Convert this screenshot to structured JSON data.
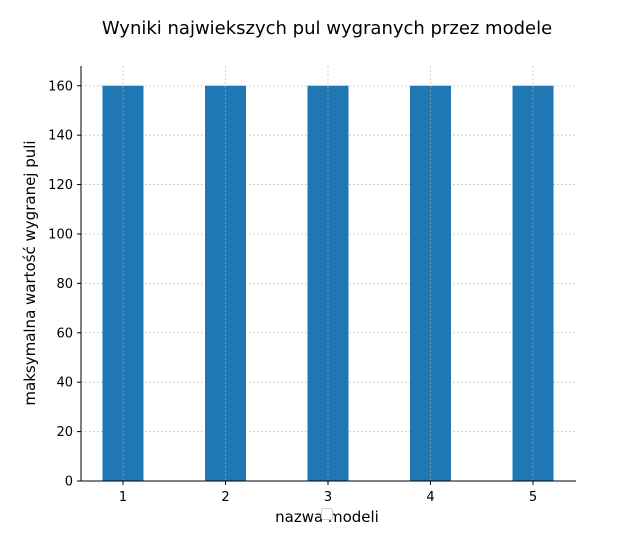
{
  "chart_data": {
    "type": "bar",
    "title": "Wyniki najwiekszych pul wygranych przez modele",
    "xlabel": "nazwa modeli",
    "ylabel": "maksymalna wartość wygranej puli",
    "categories": [
      "1",
      "2",
      "3",
      "4",
      "5"
    ],
    "values": [
      160,
      160,
      160,
      160,
      160
    ],
    "ylim": [
      0,
      168
    ],
    "yticks": [
      0,
      20,
      40,
      60,
      80,
      100,
      120,
      140,
      160
    ],
    "grid": true,
    "legend": "empty box at bottom center",
    "colors": {
      "bar": "#1f77b4",
      "grid": "#b0b0b0",
      "axis": "#000000"
    }
  }
}
